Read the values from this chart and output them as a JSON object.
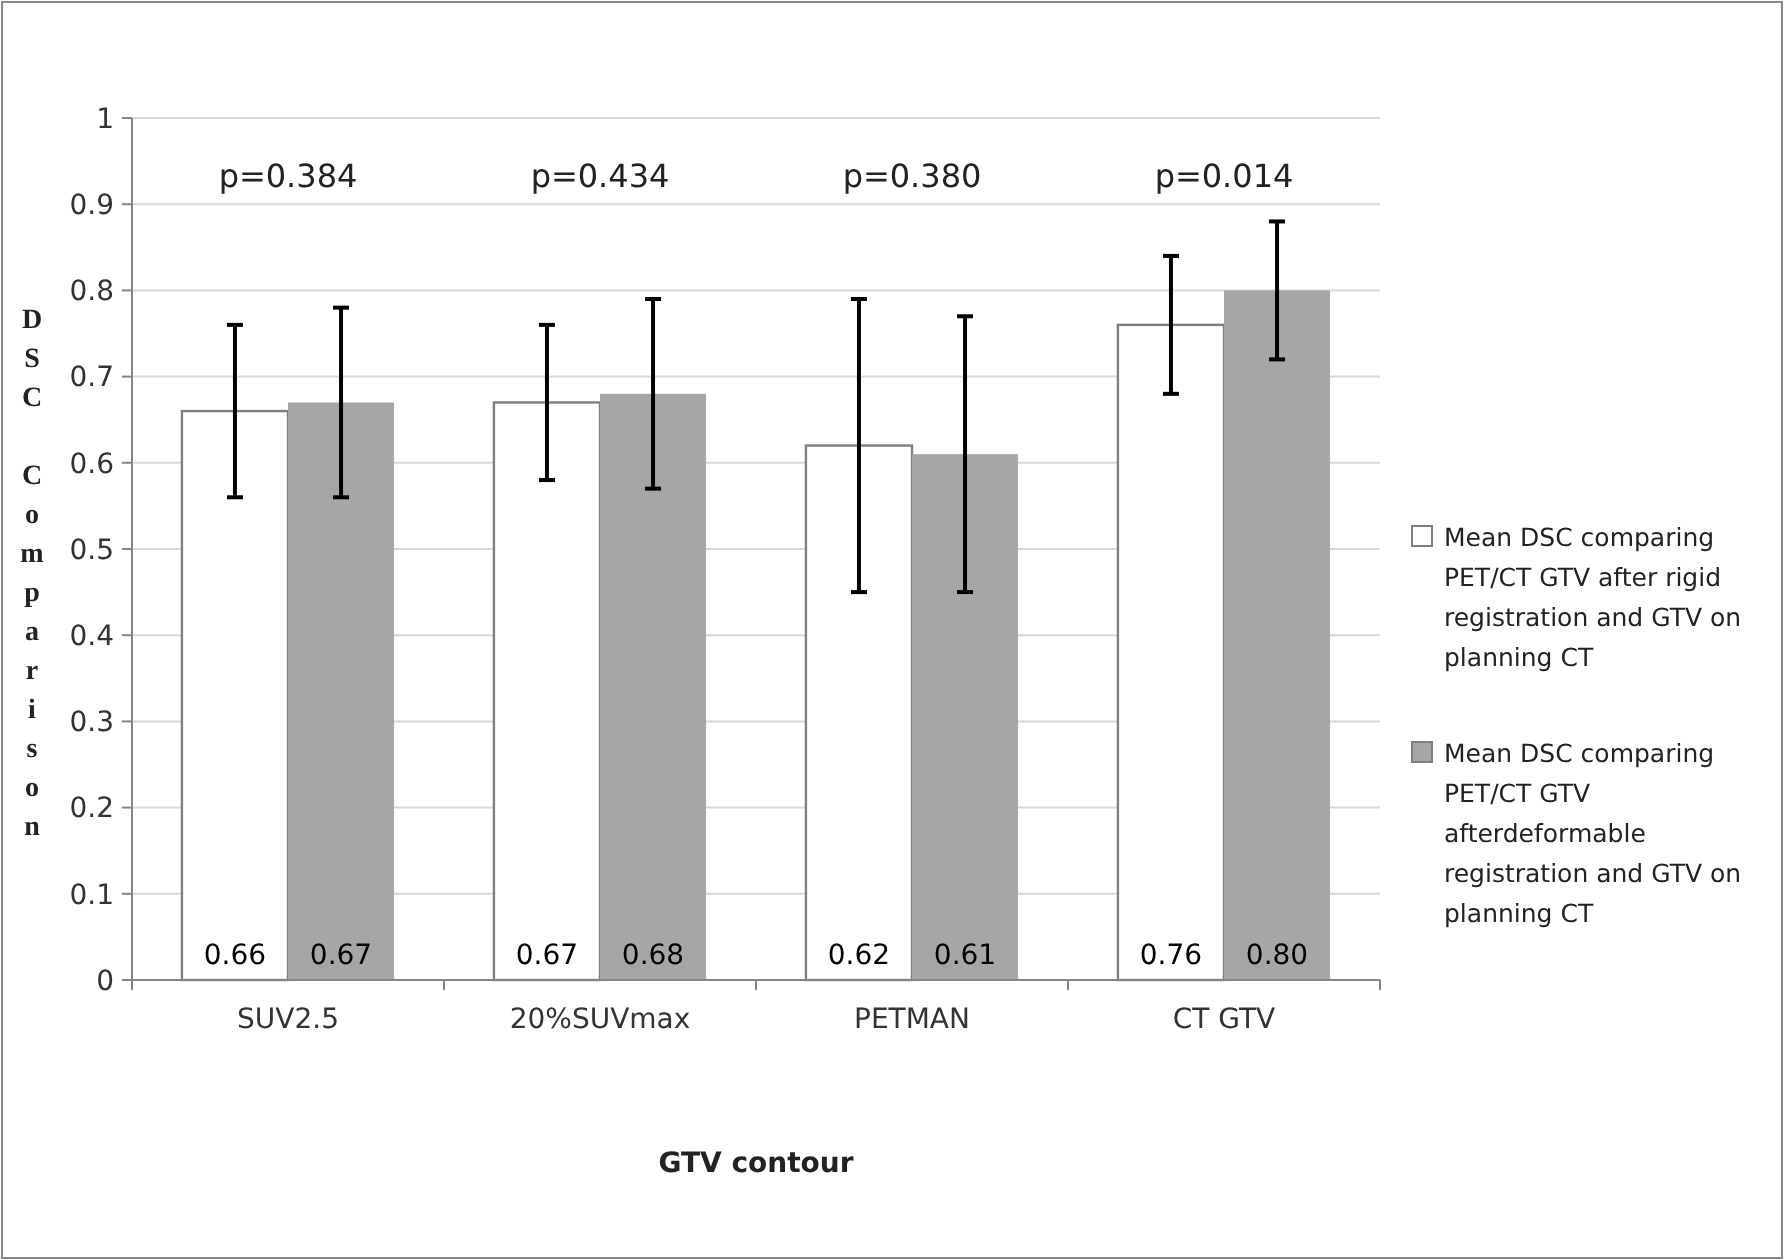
{
  "chart_data": {
    "type": "bar",
    "xlabel": "GTV contour",
    "ylabel": "DSC Comparison",
    "categories": [
      "SUV2.5",
      "20%SUVmax",
      "PETMAN",
      "CT GTV"
    ],
    "series": [
      {
        "name": "Mean DSC comparing PET/CT GTV after rigid registration and GTV on planning CT",
        "color": "#ffffff",
        "values": [
          0.66,
          0.67,
          0.62,
          0.76
        ],
        "errors": [
          [
            0.56,
            0.76
          ],
          [
            0.58,
            0.76
          ],
          [
            0.45,
            0.79
          ],
          [
            0.68,
            0.84
          ]
        ]
      },
      {
        "name": "Mean DSC comparing PET/CT GTV afterdeformable registration and GTV on planning CT",
        "color": "#a6a6a6",
        "values": [
          0.67,
          0.68,
          0.61,
          0.8
        ],
        "errors": [
          [
            0.56,
            0.78
          ],
          [
            0.57,
            0.79
          ],
          [
            0.45,
            0.77
          ],
          [
            0.72,
            0.88
          ]
        ]
      }
    ],
    "value_labels": [
      [
        "0.66",
        "0.67",
        "0.62",
        "0.76"
      ],
      [
        "0.67",
        "0.68",
        "0.61",
        "0.80"
      ]
    ],
    "ylim": [
      0,
      1
    ],
    "yticks": [
      0,
      0.1,
      0.2,
      0.3,
      0.4,
      0.5,
      0.6,
      0.7,
      0.8,
      0.9,
      1
    ],
    "grid": "y",
    "legend": "right",
    "annotations": [
      "p=0.384",
      "p=0.434",
      "p=0.380",
      "p=0.014"
    ]
  }
}
